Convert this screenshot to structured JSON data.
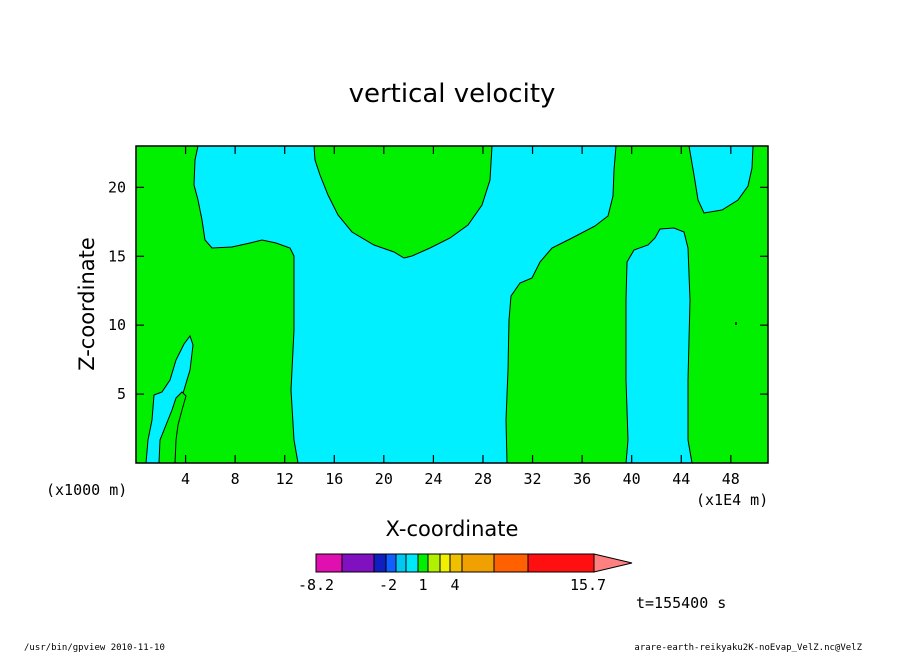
{
  "chart_data": {
    "type": "heatmap",
    "title": "vertical velocity",
    "xlabel": "X-coordinate",
    "ylabel": "Z-coordinate",
    "x_scale_note": "(x1000 m)",
    "x_unit_note": "(x1E4 m)",
    "xlim": [
      0,
      51
    ],
    "ylim": [
      0,
      23
    ],
    "x_ticks": [
      4,
      8,
      12,
      16,
      20,
      24,
      28,
      32,
      36,
      40,
      44,
      48
    ],
    "y_ticks": [
      5,
      10,
      15,
      20
    ],
    "color_levels": [
      "#e010b0",
      "#8010c0",
      "#1020c0",
      "#1060ff",
      "#00c8f0",
      "#00e8f8",
      "#00f000",
      "#b0f000",
      "#f0f000",
      "#f0c000",
      "#f0a000",
      "#ff6000",
      "#ff1010",
      "#ff8080"
    ],
    "colorbar_labels": [
      "-8.2",
      "-2",
      "1",
      "4",
      "15.7"
    ],
    "time_label": "t=155400 s",
    "field_colors": {
      "positive": "#00f000",
      "negative": "#00f0ff"
    }
  },
  "footer": {
    "left": "/usr/bin/gpview  2010-11-10",
    "right": "arare-earth-reikyaku2K-noEvap_VelZ.nc@VelZ"
  }
}
